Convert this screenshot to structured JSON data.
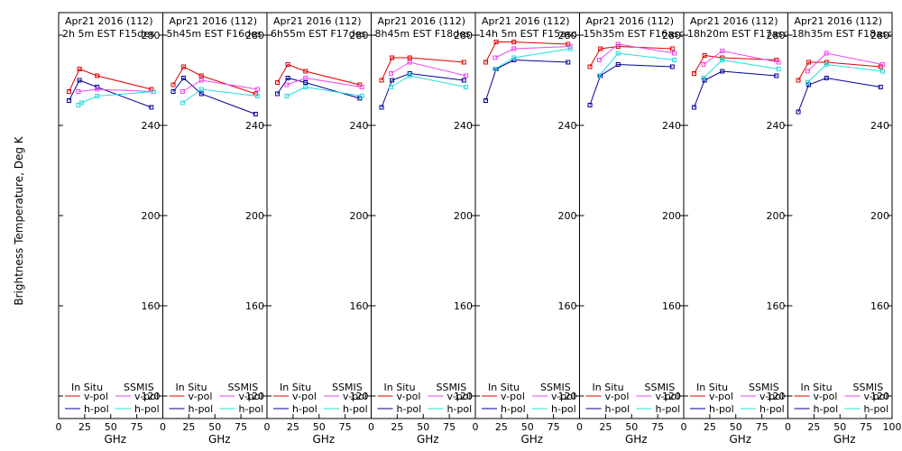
{
  "chart_data": {
    "type": "line",
    "ylabel": "Brightness Temperature, Deg K",
    "xlabel": "GHz",
    "ylim": [
      110,
      290
    ],
    "yticks": [
      120,
      160,
      200,
      240,
      280
    ],
    "xlim": [
      0,
      100
    ],
    "xticks": [
      0,
      25,
      50,
      75,
      100
    ],
    "xtick_labels": [
      "0",
      "25",
      "50",
      "75",
      "100"
    ],
    "legend": {
      "in_situ": "In Situ",
      "ssmis": "SSMIS",
      "vpol": "v-pol",
      "hpol": "h-pol"
    },
    "colors": {
      "in_situ_v": "#dd0000",
      "in_situ_h": "#000099",
      "ssmis_v": "#ee44ee",
      "ssmis_h": "#22dddd"
    },
    "panels": [
      {
        "date": "Apr21  2016 (112)",
        "time": "2h  5m  EST  F15des",
        "series": {
          "in_situ_v": {
            "x": [
              10,
              20,
              37,
              89
            ],
            "y": [
              255,
              265,
              262,
              256
            ]
          },
          "in_situ_h": {
            "x": [
              10,
              20,
              37,
              89
            ],
            "y": [
              251,
              260,
              257,
              248
            ]
          },
          "ssmis_v": {
            "x": [
              19,
              37,
              91
            ],
            "y": [
              255,
              256,
              255
            ]
          },
          "ssmis_h": {
            "x": [
              19,
              22,
              37,
              91
            ],
            "y": [
              249,
              250,
              253,
              255
            ]
          }
        }
      },
      {
        "date": "Apr21  2016 (112)",
        "time": "5h45m  EST  F16des",
        "series": {
          "in_situ_v": {
            "x": [
              10,
              20,
              37,
              89
            ],
            "y": [
              258,
              266,
              262,
              254
            ]
          },
          "in_situ_h": {
            "x": [
              10,
              20,
              37,
              89
            ],
            "y": [
              255,
              261,
              254,
              245
            ]
          },
          "ssmis_v": {
            "x": [
              19,
              37,
              91
            ],
            "y": [
              255,
              260,
              256
            ]
          },
          "ssmis_h": {
            "x": [
              19,
              37,
              91
            ],
            "y": [
              250,
              256,
              253
            ]
          }
        }
      },
      {
        "date": "Apr21  2016 (112)",
        "time": "6h55m  EST  F17des",
        "series": {
          "in_situ_v": {
            "x": [
              10,
              20,
              37,
              89
            ],
            "y": [
              259,
              267,
              264,
              258
            ]
          },
          "in_situ_h": {
            "x": [
              10,
              20,
              37,
              89
            ],
            "y": [
              254,
              261,
              259,
              252
            ]
          },
          "ssmis_v": {
            "x": [
              19,
              37,
              91
            ],
            "y": [
              258,
              261,
              257
            ]
          },
          "ssmis_h": {
            "x": [
              19,
              37,
              91
            ],
            "y": [
              253,
              257,
              253
            ]
          }
        }
      },
      {
        "date": "Apr21  2016 (112)",
        "time": "8h45m  EST  F18des",
        "series": {
          "in_situ_v": {
            "x": [
              10,
              20,
              37,
              89
            ],
            "y": [
              260,
              270,
              270,
              268
            ]
          },
          "in_situ_h": {
            "x": [
              10,
              20,
              37,
              89
            ],
            "y": [
              248,
              260,
              263,
              260
            ]
          },
          "ssmis_v": {
            "x": [
              19,
              37,
              91
            ],
            "y": [
              263,
              268,
              262
            ]
          },
          "ssmis_h": {
            "x": [
              19,
              37,
              91
            ],
            "y": [
              257,
              262,
              257
            ]
          }
        }
      },
      {
        "date": "Apr21  2016 (112)",
        "time": "14h  5m  EST  F15asc",
        "series": {
          "in_situ_v": {
            "x": [
              10,
              20,
              37,
              89
            ],
            "y": [
              268,
              277,
              277,
              276
            ]
          },
          "in_situ_h": {
            "x": [
              10,
              20,
              37,
              89
            ],
            "y": [
              251,
              265,
              269,
              268
            ]
          },
          "ssmis_v": {
            "x": [
              19,
              37,
              91
            ],
            "y": [
              270,
              274,
              275
            ]
          },
          "ssmis_h": {
            "x": [
              19,
              37,
              91
            ],
            "y": [
              265,
              270,
              274
            ]
          }
        }
      },
      {
        "date": "Apr21  2016 (112)",
        "time": "15h35m  EST  F16asc",
        "series": {
          "in_situ_v": {
            "x": [
              10,
              20,
              37,
              89
            ],
            "y": [
              266,
              274,
              275,
              274
            ]
          },
          "in_situ_h": {
            "x": [
              10,
              20,
              37,
              89
            ],
            "y": [
              249,
              262,
              267,
              266
            ]
          },
          "ssmis_v": {
            "x": [
              19,
              37,
              91
            ],
            "y": [
              269,
              276,
              272
            ]
          },
          "ssmis_h": {
            "x": [
              19,
              37,
              91
            ],
            "y": [
              262,
              272,
              269
            ]
          }
        }
      },
      {
        "date": "Apr21  2016 (112)",
        "time": "18h20m  EST  F17asc",
        "series": {
          "in_situ_v": {
            "x": [
              10,
              20,
              37,
              89
            ],
            "y": [
              263,
              271,
              270,
              269
            ]
          },
          "in_situ_h": {
            "x": [
              10,
              20,
              37,
              89
            ],
            "y": [
              248,
              260,
              264,
              262
            ]
          },
          "ssmis_v": {
            "x": [
              19,
              37,
              91
            ],
            "y": [
              267,
              273,
              268
            ]
          },
          "ssmis_h": {
            "x": [
              19,
              37,
              91
            ],
            "y": [
              261,
              269,
              265
            ]
          }
        }
      },
      {
        "date": "Apr21  2016 (112)",
        "time": "18h35m  EST  F18asc",
        "series": {
          "in_situ_v": {
            "x": [
              10,
              20,
              37,
              89
            ],
            "y": [
              260,
              268,
              268,
              266
            ]
          },
          "in_situ_h": {
            "x": [
              10,
              20,
              37,
              89
            ],
            "y": [
              246,
              258,
              261,
              257
            ]
          },
          "ssmis_v": {
            "x": [
              19,
              37,
              91
            ],
            "y": [
              264,
              272,
              267
            ]
          },
          "ssmis_h": {
            "x": [
              19,
              37,
              91
            ],
            "y": [
              259,
              267,
              264
            ]
          }
        }
      }
    ]
  }
}
